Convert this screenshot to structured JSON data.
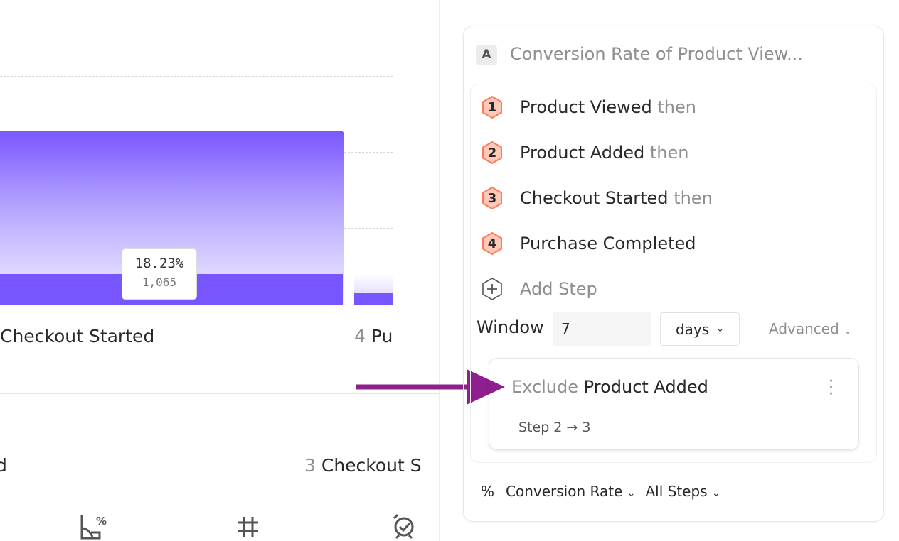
{
  "chart_fragment": {
    "bar_label": "Checkout Started",
    "next_step_number": "4",
    "next_step_label": "Pu",
    "tooltip": {
      "percent": "18.23%",
      "count": "1,065"
    },
    "bar_color": "#7856ff"
  },
  "bottom": {
    "left_label_fragment": "d",
    "right_step_number": "3",
    "right_step_label": "Checkout S",
    "icons": [
      "chart-percent-icon",
      "hash-icon",
      "alarm-check-icon"
    ]
  },
  "panel": {
    "badge": "A",
    "title": "Conversion Rate of Product View...",
    "steps": [
      {
        "number": "1",
        "label": "Product Viewed",
        "suffix": "then"
      },
      {
        "number": "2",
        "label": "Product Added",
        "suffix": "then"
      },
      {
        "number": "3",
        "label": "Checkout Started",
        "suffix": "then"
      },
      {
        "number": "4",
        "label": "Purchase Completed",
        "suffix": ""
      }
    ],
    "add_step": "Add Step",
    "window_label": "Window",
    "window_value": "7",
    "window_unit": "days",
    "advanced": "Advanced",
    "exclusion": {
      "prefix": "Exclude",
      "event": "Product Added",
      "range": "Step 2 → 3"
    },
    "metric_symbol": "%",
    "metric": "Conversion Rate",
    "steps_scope": "All Steps",
    "step_hex_fill": "#ffc9b9",
    "step_hex_stroke": "#ff7a59",
    "arrow_color": "#8e1f8e"
  }
}
